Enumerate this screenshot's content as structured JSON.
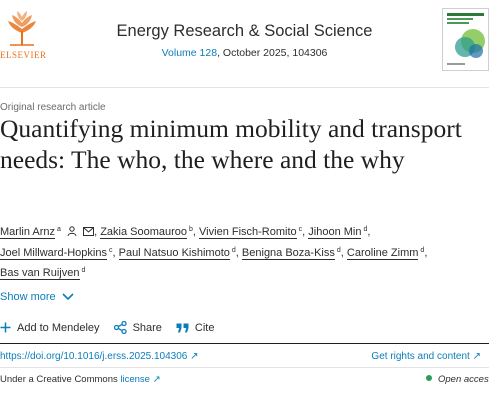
{
  "header": {
    "publisher": "ELSEVIER",
    "journal": "Energy Research & Social Science",
    "volume_link": "Volume 128",
    "issue_info": ", October 2025, 104306"
  },
  "article": {
    "type": "Original research article",
    "title": "Quantifying minimum mobility and transport needs: The who, the where and the why"
  },
  "authors": [
    {
      "name": "Marlin Arnz",
      "sup": "a"
    },
    {
      "name": "Zakia Soomauroo",
      "sup": "b"
    },
    {
      "name": "Vivien Fisch-Romito",
      "sup": "c"
    },
    {
      "name": "Jihoon Min",
      "sup": "d"
    },
    {
      "name": "Joel Millward-Hopkins",
      "sup": "c"
    },
    {
      "name": "Paul Natsuo Kishimoto",
      "sup": "d"
    },
    {
      "name": "Benigna Boza-Kiss",
      "sup": "d"
    },
    {
      "name": "Caroline Zimm",
      "sup": "d"
    },
    {
      "name": "Bas van Ruijven",
      "sup": "d"
    }
  ],
  "show_more": "Show more",
  "actions": {
    "add_mendeley": "Add to Mendeley",
    "share": "Share",
    "cite": "Cite"
  },
  "doi": "https://doi.org/10.1016/j.erss.2025.104306",
  "rights": "Get rights and content",
  "license": {
    "prefix": "Under a Creative Commons ",
    "link": "license"
  },
  "open_access": "Open access",
  "colors": {
    "link": "#0c7dbb",
    "publisher_orange": "#e9711c",
    "open_access_green": "#2b9b5b"
  },
  "icons": [
    "elsevier-logo",
    "person-icon",
    "mail-icon",
    "chevron-down-icon",
    "plus-icon",
    "share-icon",
    "quote-icon",
    "arrow-up-right-icon"
  ]
}
